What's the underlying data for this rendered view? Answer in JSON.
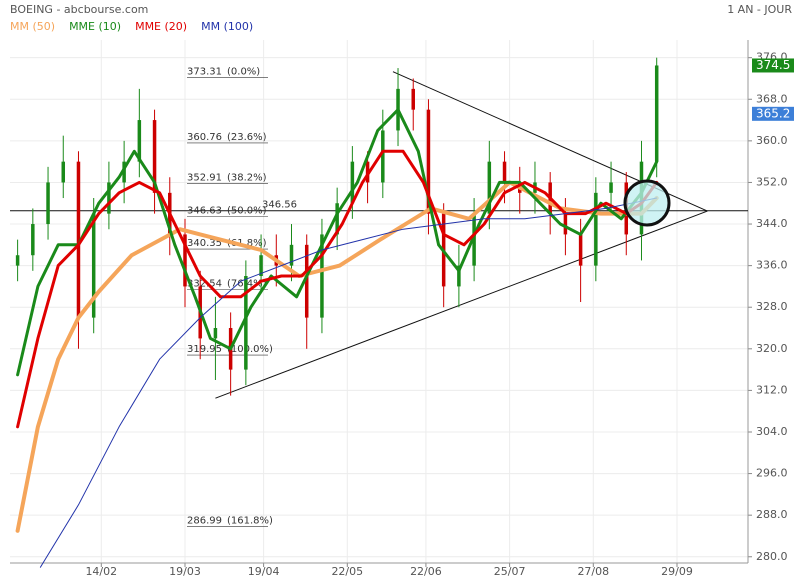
{
  "chart_data": {
    "type": "candlestick",
    "title": "BOEING - abcbourse.com",
    "period": "1 AN - JOUR",
    "x": [
      0,
      6,
      12,
      18,
      24,
      30,
      36,
      42,
      48,
      54,
      60,
      66,
      72,
      78,
      84,
      90,
      96,
      102,
      108,
      114,
      120,
      126,
      132,
      138,
      144,
      150,
      156,
      162,
      168,
      174,
      180,
      186,
      192,
      198,
      204,
      210,
      216,
      222,
      228,
      234,
      240,
      246,
      252
    ],
    "open": [
      336,
      338,
      344,
      352,
      356,
      326,
      346,
      352,
      356,
      364,
      350,
      342,
      332,
      322,
      324,
      316,
      334,
      338,
      336,
      340,
      326,
      342,
      348,
      356,
      352,
      362,
      370,
      366,
      346,
      332,
      336,
      346,
      356,
      352,
      350,
      352,
      346,
      342,
      336,
      350,
      352,
      342,
      356
    ],
    "high": [
      341,
      347,
      355,
      361,
      358,
      349,
      356,
      360,
      370,
      366,
      353,
      345,
      335,
      330,
      327,
      337,
      342,
      342,
      344,
      342,
      345,
      351,
      359,
      358,
      366,
      374,
      372,
      368,
      348,
      340,
      349,
      360,
      358,
      355,
      356,
      354,
      349,
      345,
      353,
      356,
      354,
      360,
      376
    ],
    "low": [
      333,
      335,
      341,
      349,
      320,
      323,
      343,
      348,
      353,
      346,
      338,
      328,
      318,
      314,
      311,
      313,
      331,
      332,
      333,
      320,
      323,
      339,
      345,
      348,
      349,
      359,
      362,
      342,
      328,
      328,
      333,
      343,
      348,
      346,
      346,
      342,
      338,
      329,
      333,
      346,
      338,
      337,
      353
    ],
    "close": [
      338,
      344,
      352,
      356,
      326,
      346,
      352,
      356,
      364,
      350,
      342,
      332,
      322,
      324,
      316,
      334,
      338,
      336,
      340,
      326,
      342,
      348,
      356,
      352,
      362,
      370,
      366,
      346,
      332,
      336,
      346,
      356,
      352,
      350,
      352,
      346,
      342,
      336,
      350,
      352,
      342,
      356,
      374.5
    ],
    "up_color": "#1a8a1a",
    "down_color": "#cc0000",
    "series": [
      {
        "name": "MM (50)",
        "color": "#f5a55a",
        "width": 4,
        "x": [
          0,
          8,
          16,
          24,
          32,
          45,
          64,
          72,
          96,
          111,
          127,
          143,
          163,
          178,
          194,
          214,
          230,
          246,
          252
        ],
        "values": [
          285,
          305,
          318,
          326,
          331,
          338,
          343,
          342,
          339,
          334,
          336,
          341,
          347,
          345,
          352,
          347,
          346,
          346,
          349
        ]
      },
      {
        "name": "MME (10)",
        "color": "#1a8a1a",
        "width": 3,
        "x": [
          0,
          8,
          16,
          24,
          32,
          40,
          46,
          54,
          62,
          70,
          76,
          84,
          92,
          100,
          110,
          118,
          126,
          134,
          142,
          150,
          158,
          166,
          174,
          182,
          190,
          198,
          206,
          214,
          222,
          230,
          238,
          246,
          252
        ],
        "values": [
          315,
          332,
          340,
          340,
          348,
          353,
          358,
          352,
          340,
          330,
          322,
          320,
          328,
          334,
          330,
          338,
          346,
          352,
          362,
          366,
          358,
          340,
          335,
          344,
          352,
          352,
          348,
          344,
          342,
          348,
          345,
          350,
          356
        ]
      },
      {
        "name": "MME (20)",
        "color": "#e00000",
        "width": 3,
        "x": [
          0,
          8,
          16,
          24,
          32,
          40,
          48,
          56,
          64,
          72,
          80,
          88,
          96,
          104,
          112,
          120,
          128,
          136,
          144,
          152,
          160,
          168,
          176,
          184,
          192,
          200,
          208,
          216,
          224,
          232,
          240,
          246,
          252
        ],
        "values": [
          305,
          322,
          336,
          340,
          346,
          350,
          352,
          350,
          342,
          334,
          330,
          330,
          333,
          334,
          334,
          338,
          344,
          352,
          358,
          358,
          352,
          342,
          340,
          344,
          350,
          352,
          350,
          346,
          346,
          348,
          346,
          348,
          352
        ]
      },
      {
        "name": "MM (100)",
        "color": "#2233aa",
        "width": 1,
        "x": [
          9,
          24,
          40,
          56,
          72,
          88,
          104,
          120,
          136,
          152,
          168,
          184,
          200,
          216,
          232,
          252
        ],
        "values": [
          278,
          290,
          305,
          318,
          326,
          333,
          336,
          339,
          341,
          343,
          344,
          345,
          345,
          346,
          347,
          349
        ]
      }
    ],
    "fibonacci": [
      {
        "price": 373.31,
        "ratio": "(0.0%)"
      },
      {
        "price": 360.76,
        "ratio": "(23.6%)"
      },
      {
        "price": 352.91,
        "ratio": "(38.2%)"
      },
      {
        "price": 346.63,
        "ratio": "(50.0%)"
      },
      {
        "price": 340.35,
        "ratio": "(61.8%)"
      },
      {
        "price": 332.54,
        "ratio": "(76.4%)"
      },
      {
        "price": 319.95,
        "ratio": "(100.0%)"
      },
      {
        "price": 286.99,
        "ratio": "(161.8%)"
      }
    ],
    "support_level": 346.56,
    "trendlines": [
      {
        "x": [
          148,
          272
        ],
        "y": [
          373.3,
          346.5
        ]
      },
      {
        "x": [
          78,
          272
        ],
        "y": [
          310.5,
          346.5
        ]
      }
    ],
    "price_tags": [
      {
        "value": 374.5,
        "color": "#1a8a1a"
      },
      {
        "value": 365.2,
        "color": "#3d7fd8"
      }
    ],
    "xlim": [
      -3,
      288
    ],
    "ylim": [
      278.8,
      379.4
    ],
    "xticks": [
      {
        "value": 33,
        "label": "14/02"
      },
      {
        "value": 66,
        "label": "19/03"
      },
      {
        "value": 97,
        "label": "19/04"
      },
      {
        "value": 130,
        "label": "22/05"
      },
      {
        "value": 161,
        "label": "22/06"
      },
      {
        "value": 194,
        "label": "25/07"
      },
      {
        "value": 227,
        "label": "27/08"
      },
      {
        "value": 260,
        "label": "29/09"
      }
    ],
    "yticks": [
      {
        "value": 376,
        "label": "376.0"
      },
      {
        "value": 368,
        "label": "368.0"
      },
      {
        "value": 360,
        "label": "360.0"
      },
      {
        "value": 352,
        "label": "352.0"
      },
      {
        "value": 344,
        "label": "344.0"
      },
      {
        "value": 336,
        "label": "336.0"
      },
      {
        "value": 328,
        "label": "328.0"
      },
      {
        "value": 320,
        "label": "320.0"
      },
      {
        "value": 312,
        "label": "312.0"
      },
      {
        "value": 304,
        "label": "304.0"
      },
      {
        "value": 296,
        "label": "296.0"
      },
      {
        "value": 288,
        "label": "288.0"
      },
      {
        "value": 280,
        "label": "280.0"
      }
    ],
    "grid": true
  }
}
